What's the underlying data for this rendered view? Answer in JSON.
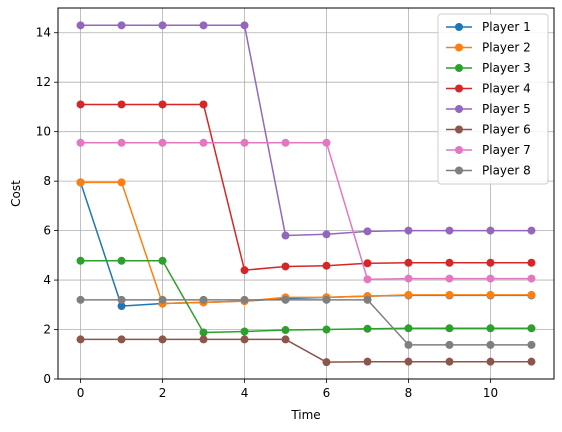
{
  "chart_data": {
    "type": "line",
    "title": "",
    "xlabel": "Time",
    "ylabel": "Cost",
    "xlim": [
      -0.55,
      11.55
    ],
    "ylim": [
      0,
      15
    ],
    "xticks": [
      0,
      2,
      4,
      6,
      8,
      10
    ],
    "yticks": [
      0,
      2,
      4,
      6,
      8,
      10,
      12,
      14
    ],
    "grid": true,
    "legend_position": "top-right",
    "x": [
      0,
      1,
      2,
      3,
      4,
      5,
      6,
      7,
      8,
      9,
      10,
      11
    ],
    "series": [
      {
        "name": "Player 1",
        "color": "#1f77b4",
        "values": [
          7.95,
          2.95,
          3.05,
          3.1,
          3.15,
          3.25,
          3.3,
          3.35,
          3.38,
          3.38,
          3.38,
          3.38
        ]
      },
      {
        "name": "Player 2",
        "color": "#ff7f0e",
        "values": [
          7.95,
          7.95,
          3.05,
          3.1,
          3.15,
          3.3,
          3.3,
          3.35,
          3.4,
          3.4,
          3.4,
          3.4
        ]
      },
      {
        "name": "Player 3",
        "color": "#2ca02c",
        "values": [
          4.78,
          4.78,
          4.78,
          1.88,
          1.92,
          1.98,
          2.0,
          2.03,
          2.05,
          2.05,
          2.05,
          2.05
        ]
      },
      {
        "name": "Player 4",
        "color": "#d62728",
        "values": [
          11.1,
          11.1,
          11.1,
          11.1,
          4.4,
          4.55,
          4.58,
          4.68,
          4.7,
          4.7,
          4.7,
          4.7
        ]
      },
      {
        "name": "Player 5",
        "color": "#9467bd",
        "values": [
          14.3,
          14.3,
          14.3,
          14.3,
          14.3,
          5.8,
          5.85,
          5.97,
          6.0,
          6.0,
          6.0,
          6.0
        ]
      },
      {
        "name": "Player 6",
        "color": "#8c564b",
        "values": [
          1.6,
          1.6,
          1.6,
          1.6,
          1.6,
          1.6,
          0.68,
          0.7,
          0.7,
          0.7,
          0.7,
          0.7
        ]
      },
      {
        "name": "Player 7",
        "color": "#e377c2",
        "values": [
          9.55,
          9.55,
          9.55,
          9.55,
          9.55,
          9.55,
          9.55,
          4.03,
          4.06,
          4.06,
          4.06,
          4.06
        ]
      },
      {
        "name": "Player 8",
        "color": "#7f7f7f",
        "values": [
          3.2,
          3.2,
          3.2,
          3.2,
          3.2,
          3.2,
          3.2,
          3.2,
          1.38,
          1.38,
          1.38,
          1.38
        ]
      }
    ]
  }
}
